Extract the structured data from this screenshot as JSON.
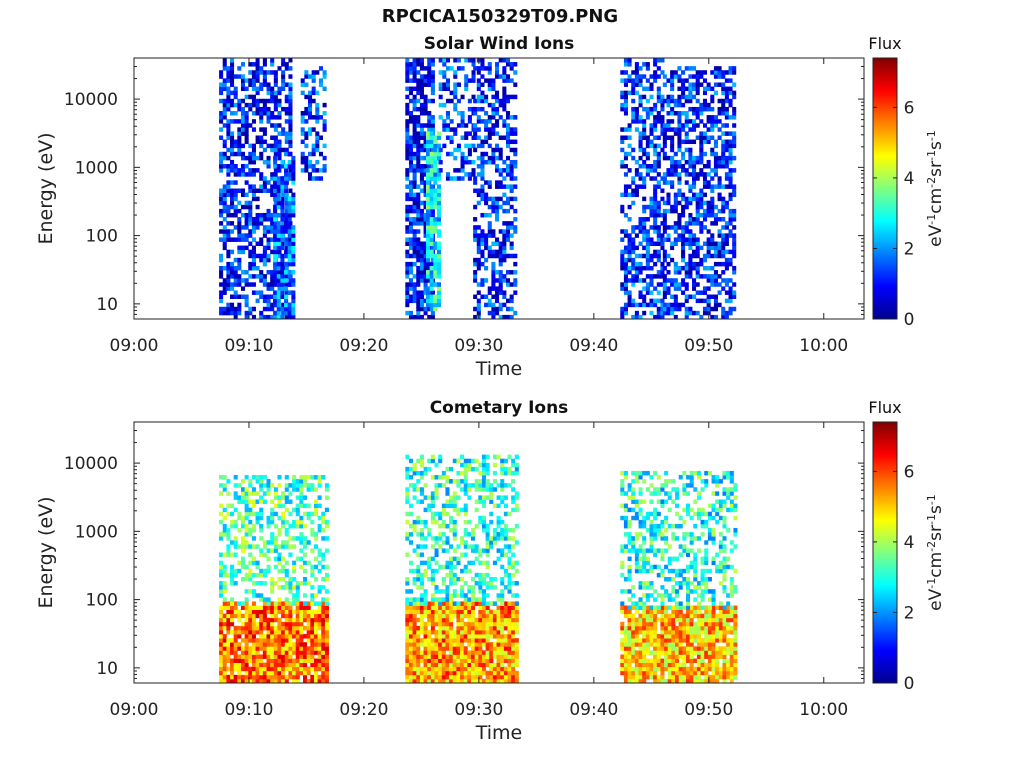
{
  "figure": {
    "title": "RPCICA150329T09.PNG"
  },
  "colors": {
    "colormap": [
      "#00008f",
      "#0000ff",
      "#0080ff",
      "#00ffff",
      "#80ff80",
      "#ffff00",
      "#ff8000",
      "#ff0000",
      "#800000"
    ]
  },
  "chart_data": [
    {
      "type": "heatmap",
      "title": "Solar Wind Ions",
      "xlabel": "Time",
      "ylabel": "Energy (eV)",
      "x_ticks": [
        "09:00",
        "09:10",
        "09:20",
        "09:30",
        "09:40",
        "09:50",
        "10:00"
      ],
      "x_range_minutes": [
        0,
        63.5
      ],
      "y_ticks": [
        10,
        100,
        1000,
        10000
      ],
      "y_tick_labels": [
        "10",
        "100",
        "1000",
        "10000"
      ],
      "y_scale": "log",
      "y_range": [
        6,
        40000
      ],
      "colorbar": {
        "title": "Flux",
        "label": "eV-1cm-2sr-1s-1",
        "ticks": [
          "0",
          "2",
          "4",
          "6"
        ],
        "range": [
          0,
          7.4
        ]
      },
      "groups": [
        {
          "x_start_min": 7.4,
          "x_end_min": 13.6,
          "e_min": 6,
          "e_max": 38000,
          "fill": 0.55,
          "mean_flux": 1.0
        },
        {
          "x_start_min": 12.1,
          "x_end_min": 13.8,
          "e_min": 6,
          "e_max": 1500,
          "fill": 0.75,
          "mean_flux": 1.6
        },
        {
          "x_start_min": 14.5,
          "x_end_min": 16.5,
          "e_min": 700,
          "e_max": 30000,
          "fill": 0.4,
          "mean_flux": 1.2
        },
        {
          "x_start_min": 23.6,
          "x_end_min": 26.0,
          "e_min": 6,
          "e_max": 40000,
          "fill": 0.7,
          "mean_flux": 1.0
        },
        {
          "x_start_min": 25.4,
          "x_end_min": 26.6,
          "e_min": 8,
          "e_max": 3000,
          "fill": 0.8,
          "mean_flux": 2.8
        },
        {
          "x_start_min": 26.5,
          "x_end_min": 29.5,
          "e_min": 700,
          "e_max": 35000,
          "fill": 0.45,
          "mean_flux": 1.3
        },
        {
          "x_start_min": 29.5,
          "x_end_min": 33.2,
          "e_min": 6,
          "e_max": 40000,
          "fill": 0.5,
          "mean_flux": 1.1
        },
        {
          "x_start_min": 42.3,
          "x_end_min": 46.0,
          "e_min": 6,
          "e_max": 38000,
          "fill": 0.5,
          "mean_flux": 1.2
        },
        {
          "x_start_min": 46.0,
          "x_end_min": 52.3,
          "e_min": 6,
          "e_max": 30000,
          "fill": 0.55,
          "mean_flux": 1.1
        }
      ]
    },
    {
      "type": "heatmap",
      "title": "Cometary Ions",
      "xlabel": "Time",
      "ylabel": "Energy (eV)",
      "x_ticks": [
        "09:00",
        "09:10",
        "09:20",
        "09:30",
        "09:40",
        "09:50",
        "10:00"
      ],
      "x_range_minutes": [
        0,
        63.5
      ],
      "y_ticks": [
        10,
        100,
        1000,
        10000
      ],
      "y_tick_labels": [
        "10",
        "100",
        "1000",
        "10000"
      ],
      "y_scale": "log",
      "y_range": [
        6,
        40000
      ],
      "colorbar": {
        "title": "Flux",
        "label": "eV-1cm-2sr-1s-1",
        "ticks": [
          "0",
          "2",
          "4",
          "6"
        ],
        "range": [
          0,
          7.4
        ]
      },
      "groups": [
        {
          "x_start_min": 7.4,
          "x_end_min": 16.8,
          "e_min": 6,
          "e_max": 90,
          "fill": 0.92,
          "mean_flux": 5.6
        },
        {
          "x_start_min": 7.4,
          "x_end_min": 16.8,
          "e_min": 90,
          "e_max": 6500,
          "fill": 0.45,
          "mean_flux": 3.3
        },
        {
          "x_start_min": 23.6,
          "x_end_min": 33.2,
          "e_min": 6,
          "e_max": 90,
          "fill": 0.95,
          "mean_flux": 5.3
        },
        {
          "x_start_min": 23.6,
          "x_end_min": 33.2,
          "e_min": 90,
          "e_max": 13000,
          "fill": 0.42,
          "mean_flux": 3.1
        },
        {
          "x_start_min": 42.3,
          "x_end_min": 52.3,
          "e_min": 6,
          "e_max": 80,
          "fill": 0.9,
          "mean_flux": 5.0
        },
        {
          "x_start_min": 42.3,
          "x_end_min": 52.3,
          "e_min": 80,
          "e_max": 7000,
          "fill": 0.45,
          "mean_flux": 3.0
        }
      ]
    }
  ]
}
